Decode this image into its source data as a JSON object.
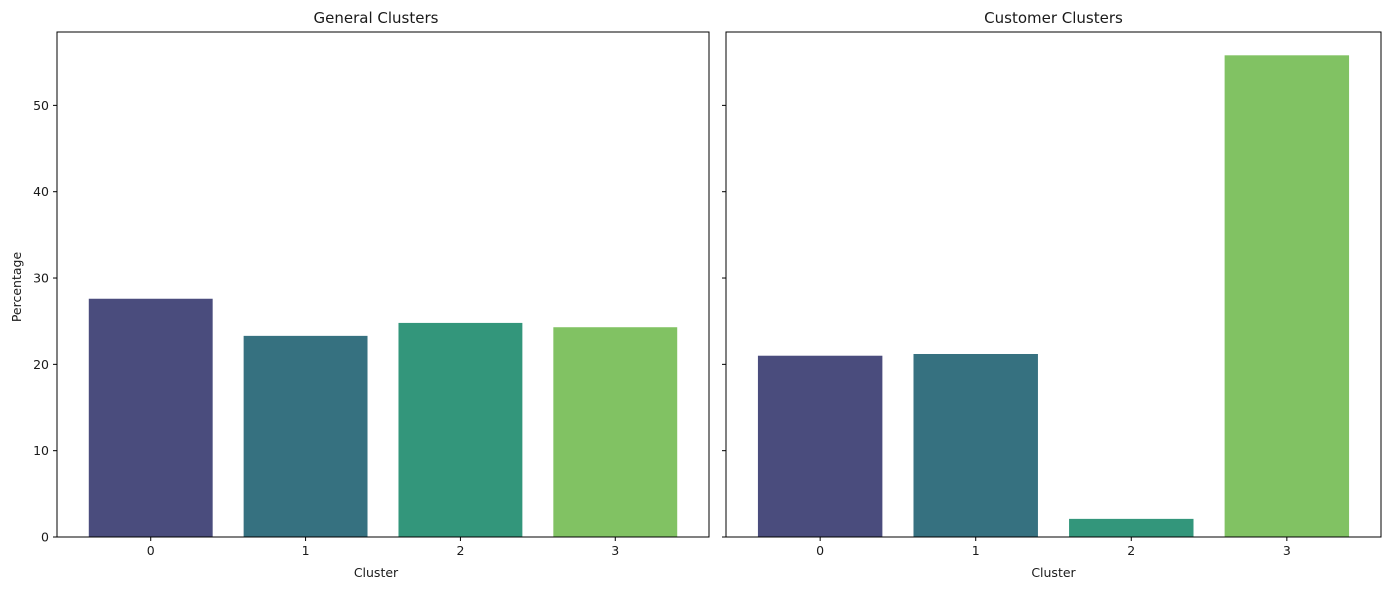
{
  "chart_data": [
    {
      "type": "bar",
      "title": "General Clusters",
      "xlabel": "Cluster",
      "ylabel": "Percentage",
      "categories": [
        "0",
        "1",
        "2",
        "3"
      ],
      "values": [
        27.6,
        23.3,
        24.8,
        24.3
      ],
      "ylim": [
        0,
        58.5
      ],
      "yticks": [
        0,
        10,
        20,
        30,
        40,
        50
      ],
      "colors": [
        "#4a4c7d",
        "#367180",
        "#33967b",
        "#81c263"
      ],
      "grid": false
    },
    {
      "type": "bar",
      "title": "Customer Clusters",
      "xlabel": "Cluster",
      "ylabel": "",
      "categories": [
        "0",
        "1",
        "2",
        "3"
      ],
      "values": [
        21.0,
        21.2,
        2.1,
        55.8
      ],
      "ylim": [
        0,
        58.5
      ],
      "yticks": [
        0,
        10,
        20,
        30,
        40,
        50
      ],
      "colors": [
        "#4a4c7d",
        "#367180",
        "#33967b",
        "#81c263"
      ],
      "grid": false,
      "sharey": true
    }
  ]
}
